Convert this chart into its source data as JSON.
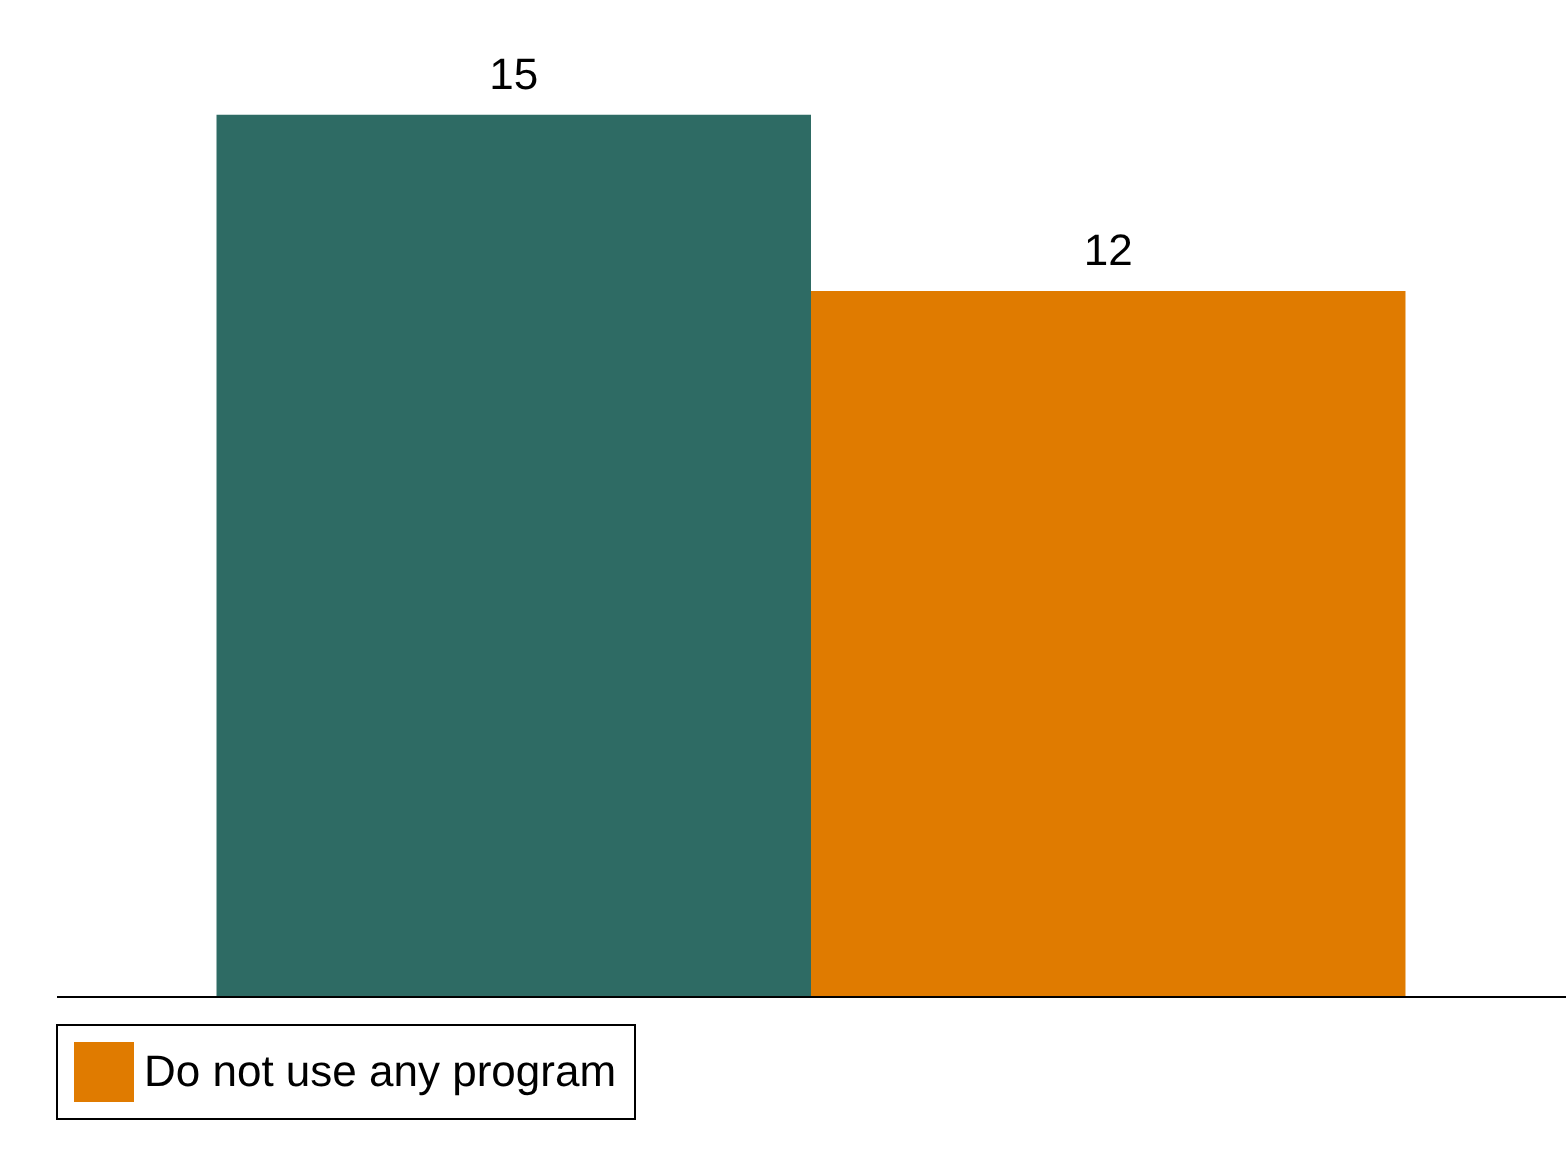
{
  "chart_data": {
    "type": "bar",
    "categories": [
      null
    ],
    "series": [
      {
        "color": "#2e6b64",
        "values": [
          15
        ]
      },
      {
        "name": "Do not use any program",
        "color": "#e07b00",
        "values": [
          12
        ]
      }
    ],
    "data_labels": true,
    "legend": "bottom",
    "tick_labels": false,
    "relative": false
  }
}
